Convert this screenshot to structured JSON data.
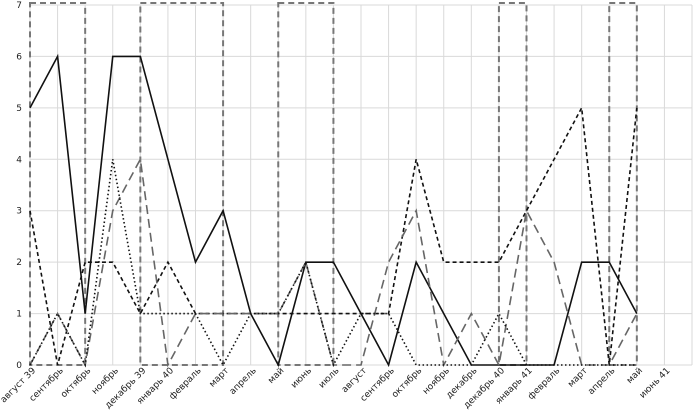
{
  "chart_data": {
    "type": "line",
    "title": "",
    "xlabel": "",
    "ylabel": "",
    "ylim": [
      0,
      7
    ],
    "yticks": [
      "0",
      "1",
      "2",
      "3",
      "4",
      "5",
      "6",
      "7"
    ],
    "grid": true,
    "legend": "none",
    "categories": [
      "август 39",
      "сентябрь",
      "октябрь",
      "ноябрь",
      "декабрь 39",
      "январь 40",
      "февраль",
      "март",
      "апрель",
      "май",
      "июнь",
      "июль",
      "август",
      "сентябрь",
      "октябрь",
      "ноябрь",
      "декабрь",
      "декабрь 40",
      "январь 41",
      "февраль",
      "март",
      "апрель",
      "май",
      "июнь 41"
    ],
    "series": [
      {
        "style": "solid",
        "color": "#111111",
        "values": [
          5,
          6,
          1,
          6,
          6,
          4,
          2,
          3,
          1,
          0,
          2,
          2,
          1,
          0,
          2,
          1,
          0,
          0,
          0,
          0,
          2,
          2,
          1,
          null
        ]
      },
      {
        "style": "dashed",
        "color": "#111111",
        "values": [
          3,
          0,
          2,
          2,
          1,
          2,
          1,
          1,
          1,
          1,
          1,
          1,
          1,
          1,
          4,
          2,
          2,
          2,
          3,
          4,
          5,
          0,
          5,
          null
        ]
      },
      {
        "style": "long-dashed",
        "color": "#666666",
        "values": [
          0,
          1,
          0,
          3,
          4,
          0,
          1,
          1,
          1,
          1,
          2,
          0,
          0,
          2,
          3,
          0,
          1,
          0,
          3,
          2,
          0,
          0,
          1,
          null
        ]
      },
      {
        "style": "dotted",
        "color": "#111111",
        "values": [
          0,
          1,
          0,
          4,
          1,
          1,
          1,
          0,
          1,
          1,
          2,
          0,
          1,
          1,
          0,
          0,
          0,
          1,
          0,
          0,
          0,
          0,
          0,
          null
        ]
      }
    ],
    "highlight_periods": [
      {
        "from": "август 39",
        "to": "октябрь"
      },
      {
        "from": "декабрь 39",
        "to": "март"
      },
      {
        "from": "май",
        "to": "июль"
      },
      {
        "from": "декабрь 40",
        "to": "январь 41"
      },
      {
        "from": "апрель",
        "to": "май"
      }
    ],
    "colors": {
      "grid": "#d9d9d9",
      "highlight_box": "#777777"
    }
  }
}
